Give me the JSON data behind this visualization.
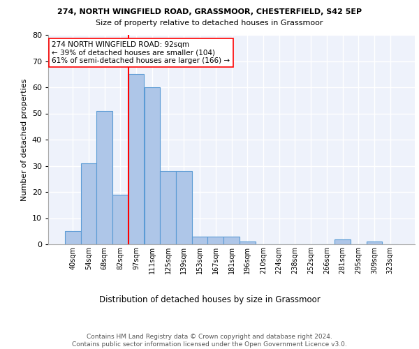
{
  "title1": "274, NORTH WINGFIELD ROAD, GRASSMOOR, CHESTERFIELD, S42 5EP",
  "title2": "Size of property relative to detached houses in Grassmoor",
  "xlabel": "Distribution of detached houses by size in Grassmoor",
  "ylabel": "Number of detached properties",
  "bar_labels": [
    "40sqm",
    "54sqm",
    "68sqm",
    "82sqm",
    "97sqm",
    "111sqm",
    "125sqm",
    "139sqm",
    "153sqm",
    "167sqm",
    "181sqm",
    "196sqm",
    "210sqm",
    "224sqm",
    "238sqm",
    "252sqm",
    "266sqm",
    "281sqm",
    "295sqm",
    "309sqm",
    "323sqm"
  ],
  "bar_heights": [
    5,
    31,
    51,
    19,
    65,
    60,
    28,
    28,
    3,
    3,
    3,
    1,
    0,
    0,
    0,
    0,
    0,
    2,
    0,
    1,
    0
  ],
  "bar_color": "#aec6e8",
  "bar_edge_color": "#5b9bd5",
  "background_color": "#eef2fb",
  "grid_color": "#ffffff",
  "vline_color": "red",
  "annotation_text": "274 NORTH WINGFIELD ROAD: 92sqm\n← 39% of detached houses are smaller (104)\n61% of semi-detached houses are larger (166) →",
  "annotation_box_color": "white",
  "annotation_box_edge": "red",
  "ylim": [
    0,
    80
  ],
  "yticks": [
    0,
    10,
    20,
    30,
    40,
    50,
    60,
    70,
    80
  ],
  "footnote": "Contains HM Land Registry data © Crown copyright and database right 2024.\nContains public sector information licensed under the Open Government Licence v3.0."
}
